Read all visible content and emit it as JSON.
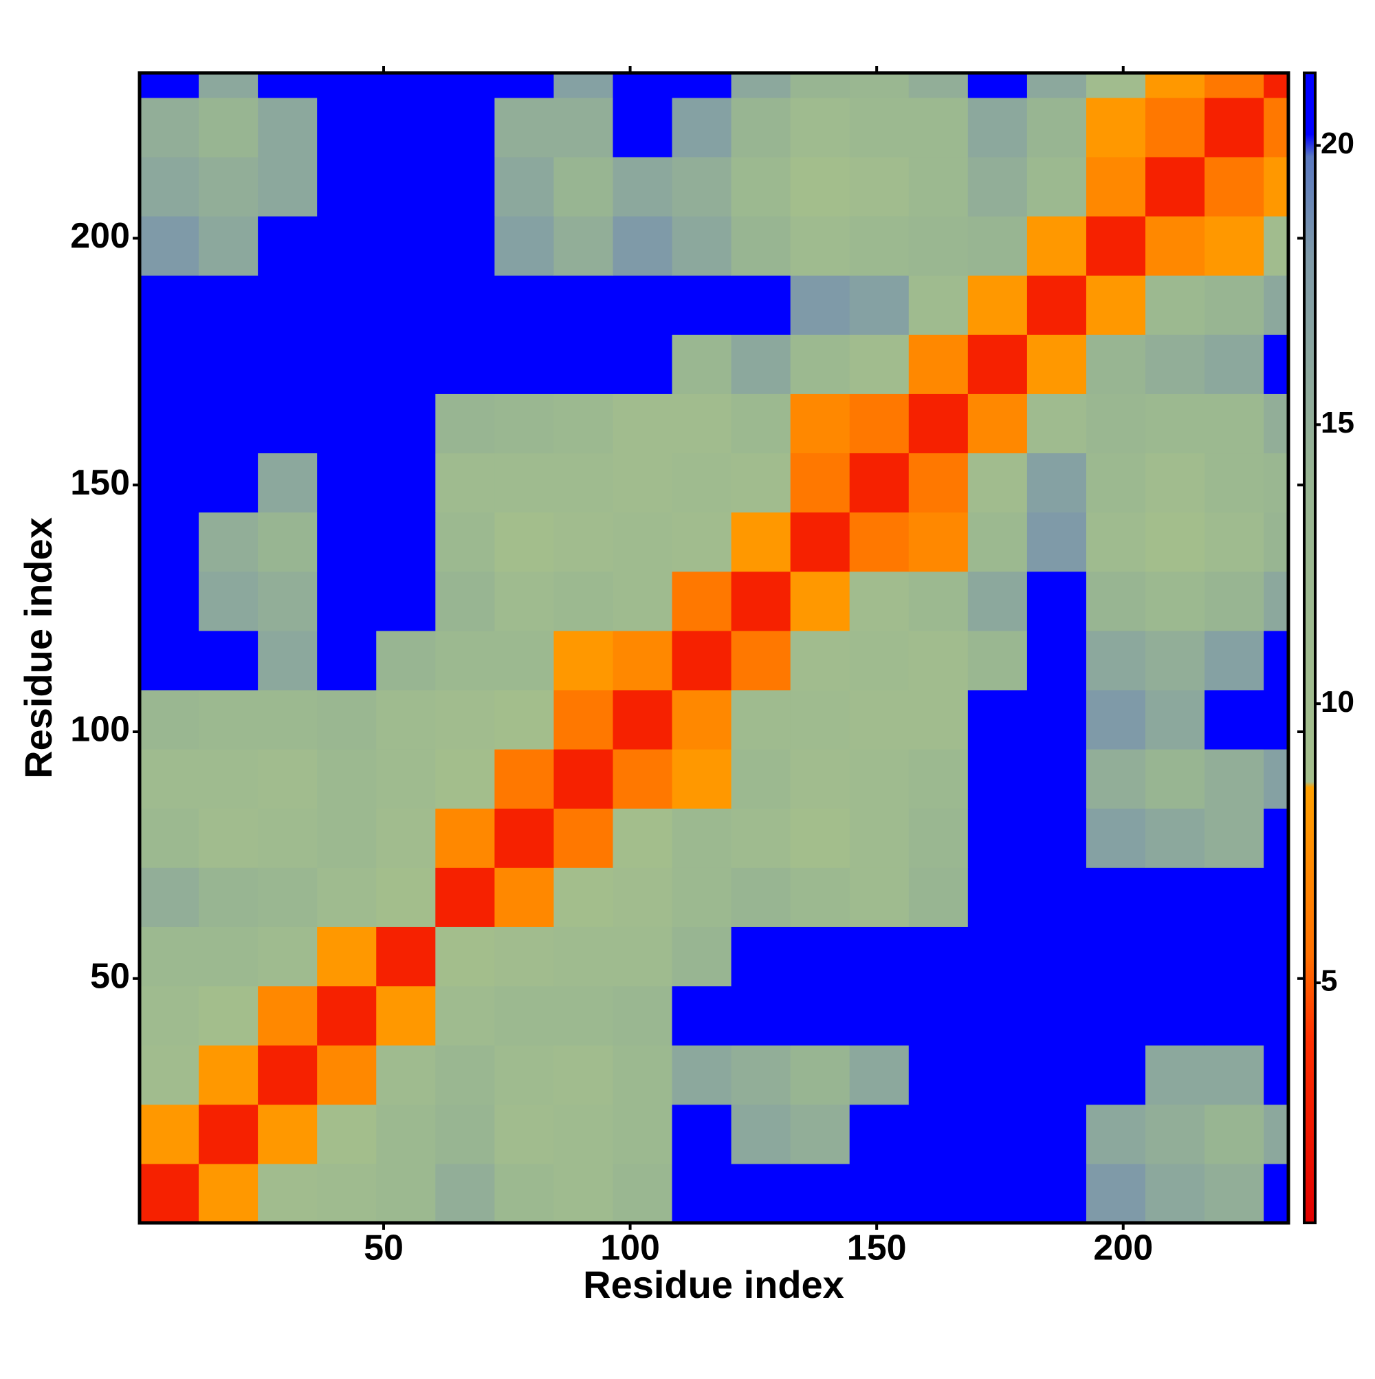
{
  "chart_data": {
    "type": "heatmap",
    "x_label": "Residue index",
    "y_label": "Residue index",
    "xbins": [
      0.5,
      12.5,
      24.5,
      36.5,
      48.5,
      60.5,
      72.5,
      84.5,
      96.5,
      108.5,
      120.5,
      132.5,
      144.5,
      156.5,
      168.5,
      180.5,
      192.5,
      204.5,
      216.5,
      228.5,
      233.5
    ],
    "ybins": [
      0.5,
      12.5,
      24.5,
      36.5,
      48.5,
      60.5,
      72.5,
      84.5,
      96.5,
      108.5,
      120.5,
      132.5,
      144.5,
      156.5,
      168.5,
      180.5,
      192.5,
      204.5,
      216.5,
      228.5,
      233.5
    ],
    "z": [
      [
        3,
        8,
        10,
        11,
        12,
        15,
        12,
        11,
        13,
        21,
        21,
        21,
        21,
        21,
        21,
        21,
        18,
        16,
        15,
        21
      ],
      [
        8,
        3,
        8,
        9,
        12,
        14,
        10,
        11,
        12,
        21,
        16,
        15,
        21,
        21,
        21,
        21,
        16,
        15,
        14,
        16
      ],
      [
        10,
        8,
        3,
        7,
        11,
        13,
        11,
        10,
        12,
        16,
        15,
        14,
        16,
        21,
        21,
        21,
        21,
        16,
        16,
        21
      ],
      [
        11,
        9,
        7,
        3,
        8,
        11,
        12,
        12,
        13,
        21,
        21,
        21,
        21,
        21,
        21,
        21,
        21,
        21,
        21,
        21
      ],
      [
        12,
        12,
        11,
        8,
        3,
        9,
        10,
        11,
        11,
        14,
        21,
        21,
        21,
        21,
        21,
        21,
        21,
        21,
        21,
        21
      ],
      [
        15,
        14,
        13,
        11,
        9,
        3,
        7,
        9,
        10,
        12,
        14,
        12,
        11,
        14,
        21,
        21,
        21,
        21,
        21,
        21
      ],
      [
        12,
        10,
        11,
        12,
        10,
        7,
        3,
        6,
        9,
        12,
        11,
        9,
        11,
        13,
        21,
        21,
        17,
        16,
        15,
        21
      ],
      [
        11,
        11,
        10,
        12,
        11,
        9,
        6,
        3,
        6,
        8,
        12,
        10,
        11,
        12,
        21,
        21,
        15,
        14,
        15,
        17
      ],
      [
        13,
        12,
        12,
        13,
        11,
        10,
        9,
        6,
        3,
        7,
        11,
        11,
        10,
        10,
        21,
        21,
        18,
        16,
        21,
        21
      ],
      [
        21,
        21,
        16,
        21,
        14,
        12,
        12,
        8,
        7,
        3,
        6,
        10,
        11,
        10,
        13,
        21,
        16,
        15,
        17,
        21
      ],
      [
        21,
        16,
        15,
        21,
        21,
        14,
        11,
        12,
        11,
        6,
        3,
        8,
        10,
        12,
        16,
        21,
        14,
        12,
        14,
        16
      ],
      [
        21,
        15,
        14,
        21,
        21,
        12,
        9,
        10,
        11,
        10,
        8,
        3,
        6,
        7,
        12,
        18,
        11,
        9,
        11,
        14
      ],
      [
        21,
        21,
        16,
        21,
        21,
        11,
        11,
        11,
        10,
        11,
        10,
        6,
        3,
        6,
        10,
        17,
        12,
        10,
        12,
        13
      ],
      [
        21,
        21,
        21,
        21,
        21,
        14,
        13,
        12,
        10,
        10,
        12,
        7,
        6,
        3,
        7,
        11,
        13,
        12,
        12,
        15
      ],
      [
        21,
        21,
        21,
        21,
        21,
        21,
        21,
        21,
        21,
        13,
        16,
        12,
        10,
        7,
        3,
        8,
        14,
        15,
        16,
        21
      ],
      [
        21,
        21,
        21,
        21,
        21,
        21,
        21,
        21,
        21,
        21,
        21,
        18,
        17,
        11,
        8,
        3,
        8,
        12,
        14,
        16
      ],
      [
        18,
        16,
        21,
        21,
        21,
        21,
        17,
        15,
        18,
        16,
        14,
        11,
        12,
        13,
        14,
        8,
        3,
        7,
        8,
        10
      ],
      [
        16,
        15,
        16,
        21,
        21,
        21,
        16,
        14,
        16,
        15,
        12,
        9,
        10,
        12,
        15,
        12,
        7,
        3,
        6,
        8
      ],
      [
        15,
        14,
        16,
        21,
        21,
        21,
        15,
        15,
        21,
        17,
        14,
        11,
        12,
        12,
        16,
        14,
        8,
        6,
        3,
        6
      ],
      [
        21,
        16,
        21,
        21,
        21,
        21,
        21,
        17,
        21,
        21,
        16,
        14,
        13,
        15,
        21,
        16,
        10,
        8,
        6,
        3
      ]
    ],
    "xlim": [
      0.5,
      233.5
    ],
    "ylim": [
      0.5,
      233.5
    ],
    "xticks": [
      50,
      100,
      150,
      200
    ],
    "yticks": [
      50,
      100,
      150,
      200
    ],
    "clim": [
      0.7,
      21.3
    ],
    "cticks": [
      5,
      10,
      15,
      20
    ],
    "colorscale": [
      [
        0.7,
        "#e00000"
      ],
      [
        4,
        "#ff3000"
      ],
      [
        5.5,
        "#ff7000"
      ],
      [
        8.5,
        "#ffa000"
      ],
      [
        8.6,
        "#a4bf8c"
      ],
      [
        14,
        "#98b592"
      ],
      [
        18,
        "#7f9aa8"
      ],
      [
        19.8,
        "#5a78c0"
      ],
      [
        20.2,
        "#0000ff"
      ],
      [
        21.3,
        "#0000ff"
      ]
    ]
  }
}
